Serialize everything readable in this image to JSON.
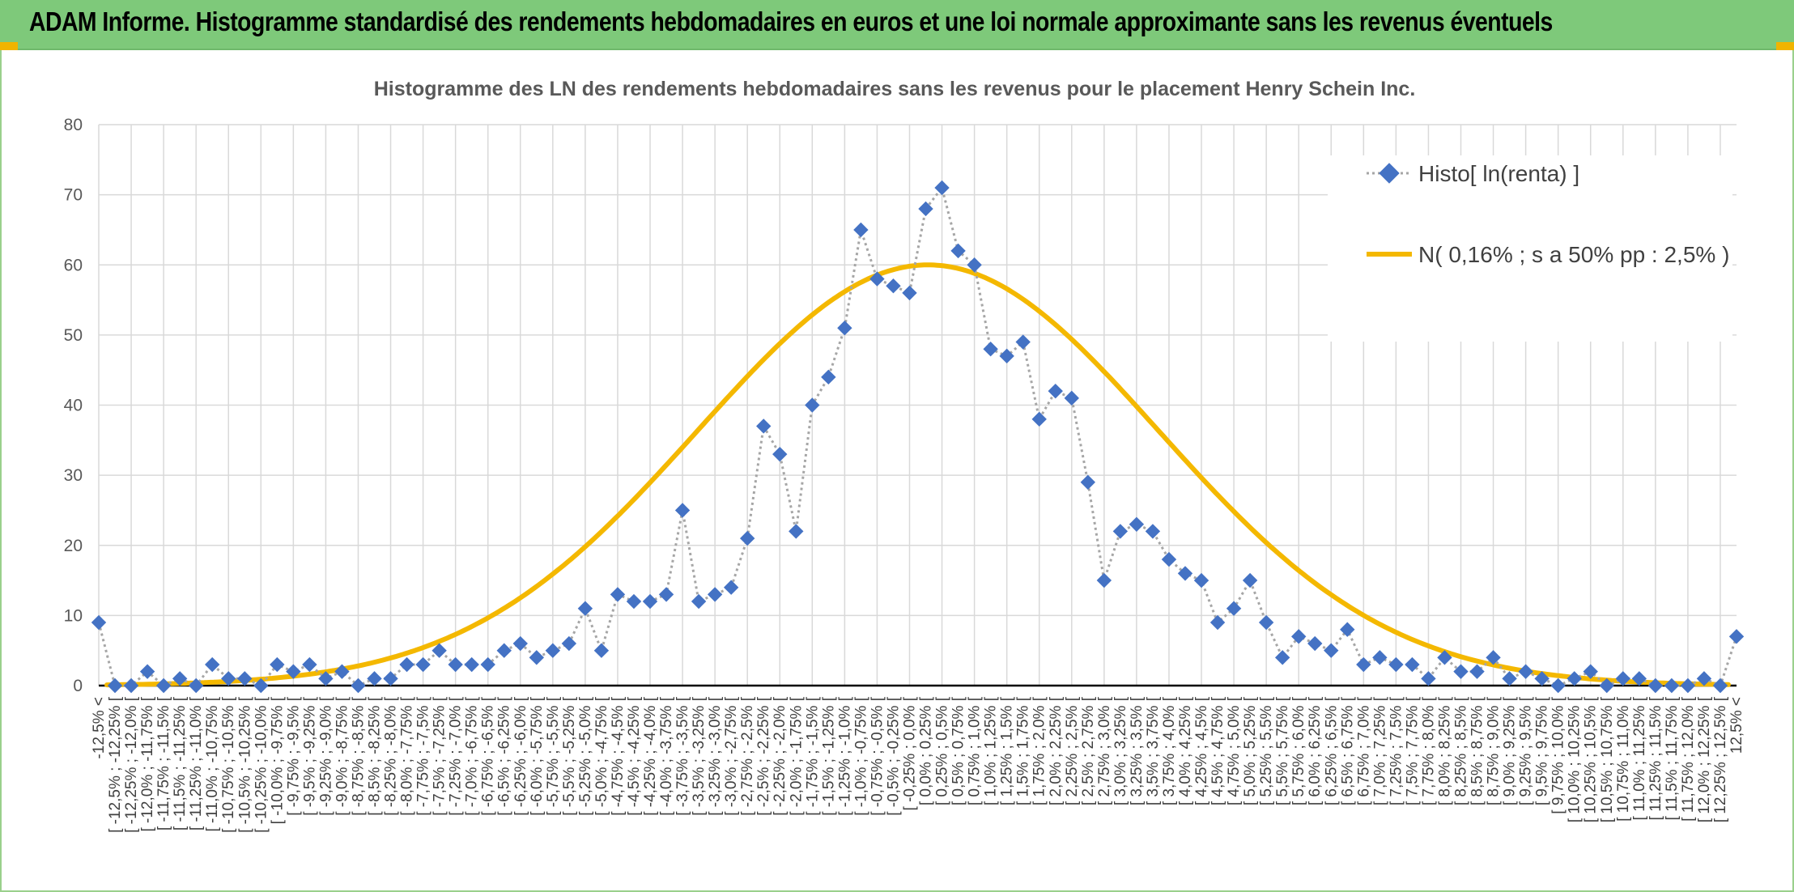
{
  "banner": {
    "title": "ADAM Informe. Histogramme standardisé des rendements hebdomadaires en euros et une loi normale approximante sans les revenus éventuels"
  },
  "colors": {
    "banner": "#7ec97a",
    "marker": "#4472c4",
    "curve": "#f4b800",
    "dotted_line": "#a6a6a6"
  },
  "chart_data": {
    "type": "line",
    "title": "Histogramme des LN des rendements hebdomadaires sans les revenus pour le placement Henry Schein Inc.",
    "xlabel": "",
    "ylabel": "",
    "ylim": [
      0,
      80
    ],
    "yticks": [
      0,
      10,
      20,
      30,
      40,
      50,
      60,
      70,
      80
    ],
    "grid": true,
    "legend_position": "top-right",
    "categories": [
      "-12,5% <",
      "[ -12,5% ; -12,25% [",
      "[ -12,25% ; -12,0% [",
      "[ -12,0% ; -11,75% [",
      "[ -11,75% ; -11,5% [",
      "[ -11,5% ; -11,25% [",
      "[ -11,25% ; -11,0% [",
      "[ -11,0% ; -10,75% [",
      "[ -10,75% ; -10,5% [",
      "[ -10,5% ; -10,25% [",
      "[ -10,25% ; -10,0% [",
      "[ -10,0% ; -9,75% [",
      "[ -9,75% ; -9,5% [",
      "[ -9,5% ; -9,25% [",
      "[ -9,25% ; -9,0% [",
      "[ -9,0% ; -8,75% [",
      "[ -8,75% ; -8,5% [",
      "[ -8,5% ; -8,25% [",
      "[ -8,25% ; -8,0% [",
      "[ -8,0% ; -7,75% [",
      "[ -7,75% ; -7,5% [",
      "[ -7,5% ; -7,25% [",
      "[ -7,25% ; -7,0% [",
      "[ -7,0% ; -6,75% [",
      "[ -6,75% ; -6,5% [",
      "[ -6,5% ; -6,25% [",
      "[ -6,25% ; -6,0% [",
      "[ -6,0% ; -5,75% [",
      "[ -5,75% ; -5,5% [",
      "[ -5,5% ; -5,25% [",
      "[ -5,25% ; -5,0% [",
      "[ -5,0% ; -4,75% [",
      "[ -4,75% ; -4,5% [",
      "[ -4,5% ; -4,25% [",
      "[ -4,25% ; -4,0% [",
      "[ -4,0% ; -3,75% [",
      "[ -3,75% ; -3,5% [",
      "[ -3,5% ; -3,25% [",
      "[ -3,25% ; -3,0% [",
      "[ -3,0% ; -2,75% [",
      "[ -2,75% ; -2,5% [",
      "[ -2,5% ; -2,25% [",
      "[ -2,25% ; -2,0% [",
      "[ -2,0% ; -1,75% [",
      "[ -1,75% ; -1,5% [",
      "[ -1,5% ; -1,25% [",
      "[ -1,25% ; -1,0% [",
      "[ -1,0% ; -0,75% [",
      "[ -0,75% ; -0,5% [",
      "[ -0,5% ; -0,25% [",
      "[ -0,25% ; 0,0% [",
      "[ 0,0% ; 0,25% [",
      "[ 0,25% ; 0,5% [",
      "[ 0,5% ; 0,75% [",
      "[ 0,75% ; 1,0% [",
      "[ 1,0% ; 1,25% [",
      "[ 1,25% ; 1,5% [",
      "[ 1,5% ; 1,75% [",
      "[ 1,75% ; 2,0% [",
      "[ 2,0% ; 2,25% [",
      "[ 2,25% ; 2,5% [",
      "[ 2,5% ; 2,75% [",
      "[ 2,75% ; 3,0% [",
      "[ 3,0% ; 3,25% [",
      "[ 3,25% ; 3,5% [",
      "[ 3,5% ; 3,75% [",
      "[ 3,75% ; 4,0% [",
      "[ 4,0% ; 4,25% [",
      "[ 4,25% ; 4,5% [",
      "[ 4,5% ; 4,75% [",
      "[ 4,75% ; 5,0% [",
      "[ 5,0% ; 5,25% [",
      "[ 5,25% ; 5,5% [",
      "[ 5,5% ; 5,75% [",
      "[ 5,75% ; 6,0% [",
      "[ 6,0% ; 6,25% [",
      "[ 6,25% ; 6,5% [",
      "[ 6,5% ; 6,75% [",
      "[ 6,75% ; 7,0% [",
      "[ 7,0% ; 7,25% [",
      "[ 7,25% ; 7,5% [",
      "[ 7,5% ; 7,75% [",
      "[ 7,75% ; 8,0% [",
      "[ 8,0% ; 8,25% [",
      "[ 8,25% ; 8,5% [",
      "[ 8,5% ; 8,75% [",
      "[ 8,75% ; 9,0% [",
      "[ 9,0% ; 9,25% [",
      "[ 9,25% ; 9,5% [",
      "[ 9,5% ; 9,75% [",
      "[ 9,75% ; 10,0% [",
      "[ 10,0% ; 10,25% [",
      "[ 10,25% ; 10,5% [",
      "[ 10,5% ; 10,75% [",
      "[ 10,75% ; 11,0% [",
      "[ 11,0% ; 11,25% [",
      "[ 11,25% ; 11,5% [",
      "[ 11,5% ; 11,75% [",
      "[ 11,75% ; 12,0% [",
      "[ 12,0% ; 12,25% [",
      "[ 12,25% ; 12,5% [",
      "12,5% <"
    ],
    "series": [
      {
        "name": "Histo[ ln(renta) ]",
        "style": "dotted-line-diamond-markers",
        "values": [
          9,
          0,
          0,
          2,
          0,
          1,
          0,
          3,
          1,
          1,
          0,
          3,
          2,
          3,
          1,
          2,
          0,
          1,
          1,
          3,
          3,
          5,
          3,
          3,
          3,
          5,
          6,
          4,
          5,
          6,
          11,
          5,
          13,
          12,
          12,
          13,
          25,
          12,
          13,
          14,
          21,
          37,
          33,
          22,
          40,
          44,
          51,
          65,
          58,
          57,
          56,
          68,
          71,
          62,
          60,
          48,
          47,
          49,
          38,
          42,
          41,
          29,
          15,
          22,
          23,
          22,
          18,
          16,
          15,
          9,
          11,
          15,
          9,
          4,
          7,
          6,
          5,
          8,
          3,
          4,
          3,
          3,
          1,
          4,
          2,
          2,
          4,
          1,
          2,
          1,
          0,
          1,
          2,
          0,
          1,
          1,
          0,
          0,
          0,
          1,
          0,
          7
        ]
      },
      {
        "name": "N( 0,16% ; s a 50% pp : 2,5% )",
        "style": "smooth-solid-line",
        "mean": 0.16,
        "peak": 60,
        "x_range_pct": [
          -12.5,
          12.5
        ]
      }
    ]
  }
}
